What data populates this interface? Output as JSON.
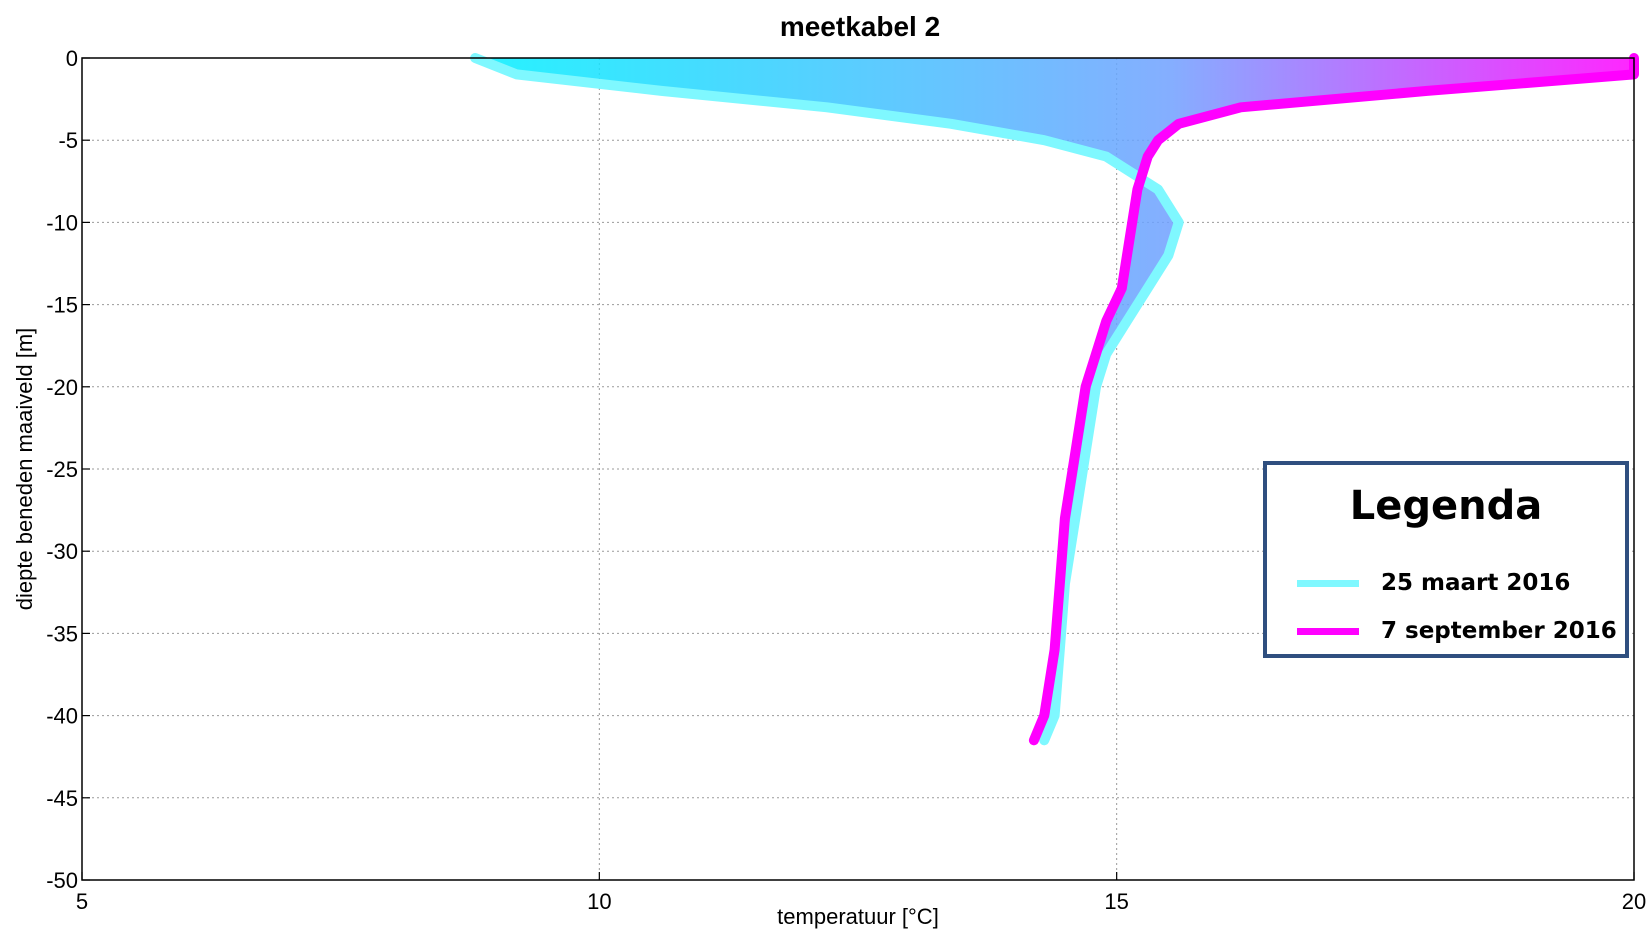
{
  "chart_data": {
    "type": "line",
    "title": "meetkabel 2",
    "xlabel": "temperatuur [°C]",
    "ylabel": "diepte beneden maaiveld [m]",
    "xlim": [
      5,
      20
    ],
    "ylim": [
      -50,
      0
    ],
    "xticks": [
      "5",
      "10",
      "15",
      "20"
    ],
    "yticks": [
      "0",
      "-5",
      "-10",
      "-15",
      "-20",
      "-25",
      "-30",
      "-35",
      "-40",
      "-45",
      "-50"
    ],
    "grid": true,
    "series": [
      {
        "name": "25 maart 2016",
        "color": "#7ff8ff",
        "x": [
          8.8,
          9.2,
          10.6,
          12.2,
          13.4,
          14.3,
          14.9,
          15.4,
          15.6,
          15.5,
          15.3,
          15.1,
          14.9,
          14.8,
          14.7,
          14.6,
          14.5,
          14.45,
          14.4,
          14.3
        ],
        "y": [
          0,
          -1,
          -2,
          -3,
          -4,
          -5,
          -6,
          -8,
          -10,
          -12,
          -14,
          -16,
          -18,
          -20,
          -24,
          -28,
          -32,
          -36,
          -40,
          -41.5
        ]
      },
      {
        "name": "7 september 2016",
        "color": "#ff00ff",
        "x": [
          20,
          20,
          18.0,
          16.2,
          15.6,
          15.4,
          15.3,
          15.2,
          15.15,
          15.1,
          15.05,
          14.9,
          14.8,
          14.7,
          14.6,
          14.5,
          14.45,
          14.4,
          14.3,
          14.2
        ],
        "y": [
          0,
          -1,
          -2,
          -3,
          -4,
          -5,
          -6,
          -8,
          -10,
          -12,
          -14,
          -16,
          -18,
          -20,
          -24,
          -28,
          -32,
          -36,
          -40,
          -41.5
        ]
      }
    ],
    "legend": {
      "title": "Legenda",
      "position": "right",
      "entries": [
        "25 maart 2016",
        "7 september 2016"
      ]
    }
  }
}
